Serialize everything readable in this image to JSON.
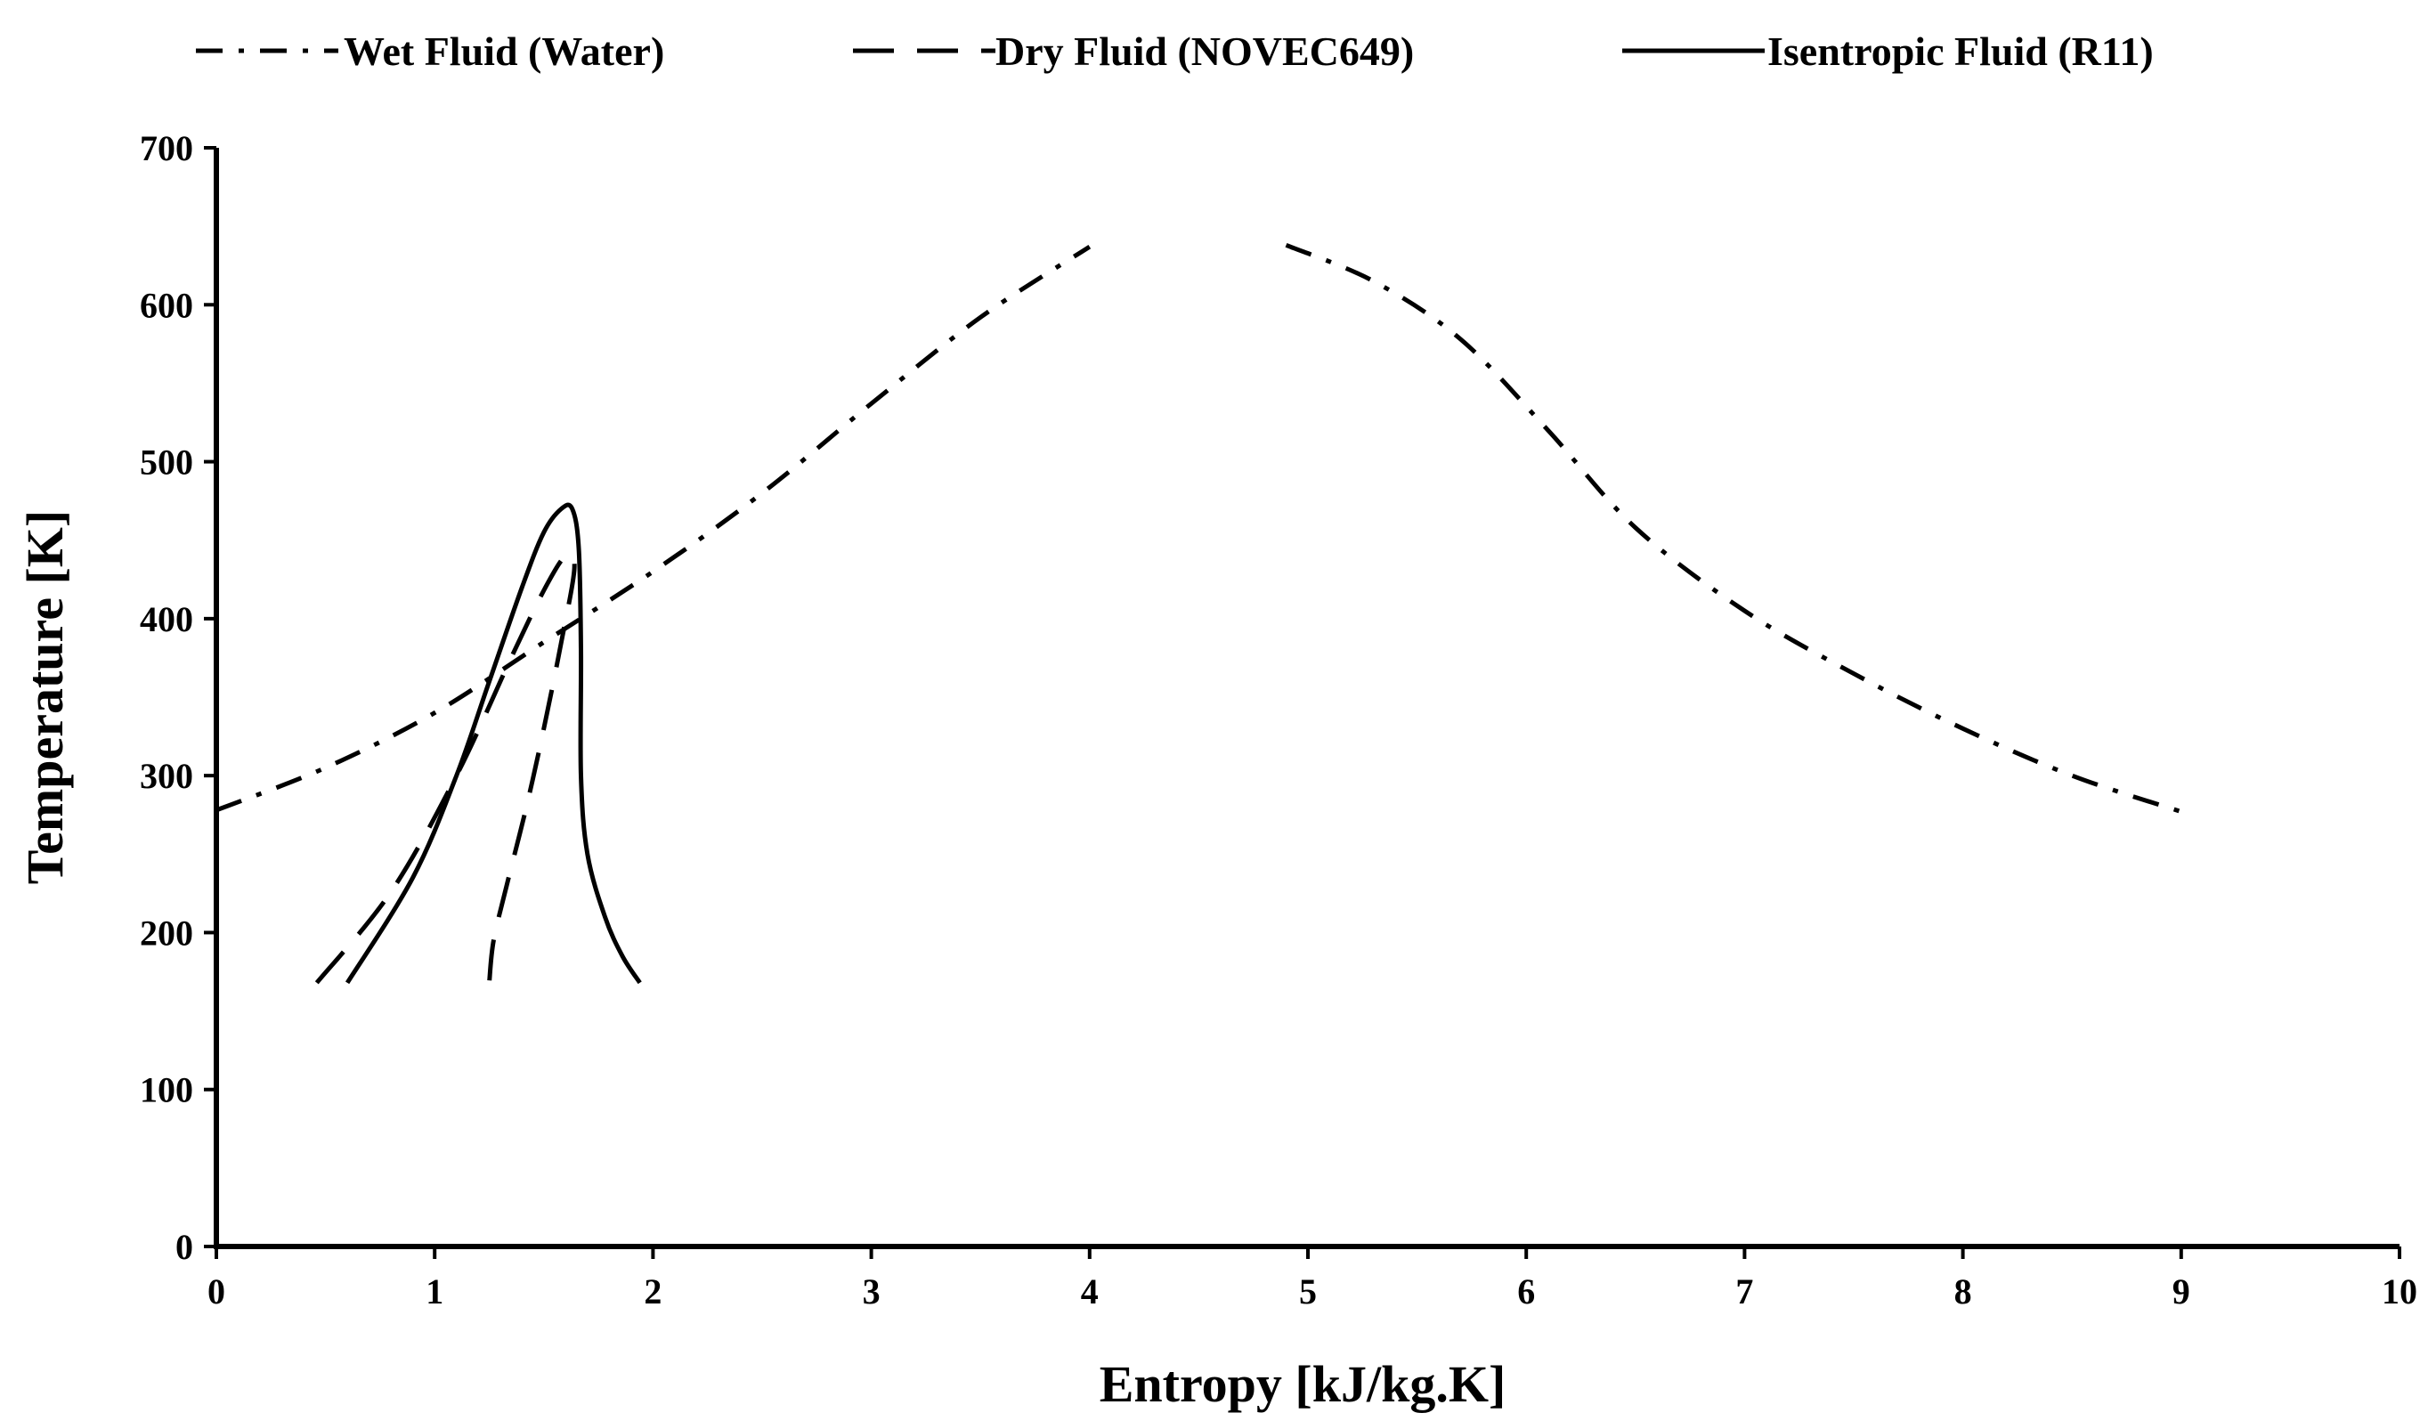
{
  "chart_data": {
    "type": "line",
    "title": "",
    "xlabel": "Entropy [kJ/kg.K]",
    "ylabel": "Temperature [K]",
    "xlim": [
      0,
      10
    ],
    "ylim": [
      0,
      700
    ],
    "xticks": [
      "0",
      "1",
      "2",
      "3",
      "4",
      "5",
      "6",
      "7",
      "8",
      "9",
      "10"
    ],
    "yticks": [
      "0",
      "100",
      "200",
      "300",
      "400",
      "500",
      "600",
      "700"
    ],
    "grid": false,
    "legend_position": "top",
    "series": [
      {
        "name": "Wet Fluid (Water)",
        "style": "dash-dot",
        "color": "#000000",
        "segments": [
          [
            [
              0.0,
              278
            ],
            [
              0.5,
              305
            ],
            [
              1.0,
              340
            ],
            [
              1.5,
              385
            ],
            [
              2.0,
              430
            ],
            [
              2.5,
              480
            ],
            [
              3.0,
              537
            ],
            [
              3.5,
              592
            ],
            [
              4.0,
              637
            ]
          ],
          [
            [
              4.9,
              638
            ],
            [
              5.3,
              615
            ],
            [
              5.7,
              578
            ],
            [
              6.1,
              520
            ],
            [
              6.5,
              458
            ],
            [
              7.0,
              405
            ],
            [
              7.5,
              365
            ],
            [
              8.0,
              330
            ],
            [
              8.5,
              300
            ],
            [
              9.0,
              277
            ]
          ]
        ]
      },
      {
        "name": "Dry Fluid (NOVEC649)",
        "style": "dashed",
        "color": "#000000",
        "segments": [
          [
            [
              0.46,
              168
            ],
            [
              0.8,
              226
            ],
            [
              1.1,
              300
            ],
            [
              1.35,
              375
            ],
            [
              1.5,
              418
            ],
            [
              1.6,
              440
            ],
            [
              1.64,
              432
            ],
            [
              1.58,
              385
            ],
            [
              1.5,
              330
            ],
            [
              1.42,
              280
            ],
            [
              1.33,
              230
            ],
            [
              1.27,
              195
            ],
            [
              1.25,
              168
            ]
          ]
        ]
      },
      {
        "name": "Isentropic Fluid (R11)",
        "style": "solid",
        "color": "#000000",
        "segments": [
          [
            [
              0.6,
              168
            ],
            [
              0.9,
              235
            ],
            [
              1.1,
              300
            ],
            [
              1.25,
              360
            ],
            [
              1.4,
              420
            ],
            [
              1.5,
              455
            ],
            [
              1.58,
              470
            ],
            [
              1.63,
              470
            ],
            [
              1.66,
              445
            ],
            [
              1.67,
              380
            ],
            [
              1.67,
              300
            ],
            [
              1.7,
              250
            ],
            [
              1.78,
              210
            ],
            [
              1.86,
              185
            ],
            [
              1.94,
              168
            ]
          ]
        ]
      }
    ]
  }
}
